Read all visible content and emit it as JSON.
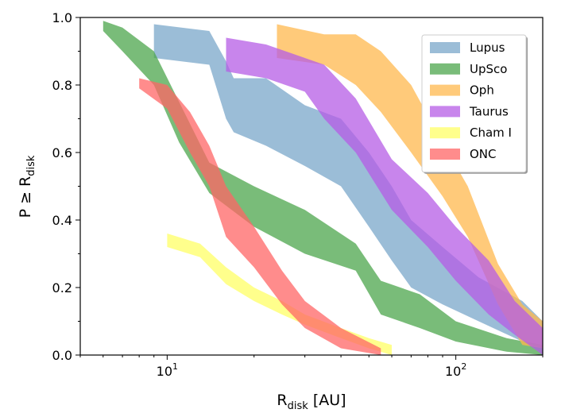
{
  "chart_data": {
    "type": "area",
    "xscale": "log",
    "xlim": [
      5,
      200
    ],
    "ylim": [
      0.0,
      1.0
    ],
    "xlabel": {
      "main": "R",
      "sub": "disk",
      "rest": " [AU]"
    },
    "ylabel": {
      "main": "P ≥ R",
      "sub": "disk"
    },
    "xticks": [
      {
        "value": 10,
        "base": "10",
        "exp": "1"
      },
      {
        "value": 100,
        "base": "10",
        "exp": "2"
      }
    ],
    "yticks": [
      {
        "value": 0.0,
        "label": "0.0"
      },
      {
        "value": 0.2,
        "label": "0.2"
      },
      {
        "value": 0.4,
        "label": "0.4"
      },
      {
        "value": 0.6,
        "label": "0.6"
      },
      {
        "value": 0.8,
        "label": "0.8"
      },
      {
        "value": 1.0,
        "label": "1.0"
      }
    ],
    "legend_position": "upper-right",
    "series": [
      {
        "name": "Lupus",
        "color": "#7aa7ca",
        "upper": [
          [
            9,
            0.98
          ],
          [
            14,
            0.96
          ],
          [
            16,
            0.87
          ],
          [
            17,
            0.82
          ],
          [
            22,
            0.82
          ],
          [
            30,
            0.74
          ],
          [
            40,
            0.7
          ],
          [
            50,
            0.6
          ],
          [
            60,
            0.5
          ],
          [
            70,
            0.4
          ],
          [
            90,
            0.32
          ],
          [
            120,
            0.23
          ],
          [
            170,
            0.16
          ],
          [
            200,
            0.1
          ]
        ],
        "lower": [
          [
            9,
            0.88
          ],
          [
            14,
            0.86
          ],
          [
            16,
            0.7
          ],
          [
            17,
            0.66
          ],
          [
            22,
            0.62
          ],
          [
            30,
            0.56
          ],
          [
            40,
            0.5
          ],
          [
            50,
            0.38
          ],
          [
            60,
            0.28
          ],
          [
            70,
            0.2
          ],
          [
            90,
            0.15
          ],
          [
            120,
            0.1
          ],
          [
            170,
            0.04
          ],
          [
            200,
            0.02
          ]
        ]
      },
      {
        "name": "UpSco",
        "color": "#4ca64c",
        "upper": [
          [
            6,
            0.99
          ],
          [
            7,
            0.97
          ],
          [
            9,
            0.9
          ],
          [
            11,
            0.75
          ],
          [
            14,
            0.57
          ],
          [
            20,
            0.5
          ],
          [
            30,
            0.43
          ],
          [
            45,
            0.33
          ],
          [
            55,
            0.22
          ],
          [
            75,
            0.18
          ],
          [
            100,
            0.1
          ],
          [
            150,
            0.05
          ],
          [
            200,
            0.03
          ]
        ],
        "lower": [
          [
            6,
            0.96
          ],
          [
            7,
            0.9
          ],
          [
            9,
            0.8
          ],
          [
            11,
            0.63
          ],
          [
            14,
            0.48
          ],
          [
            20,
            0.38
          ],
          [
            30,
            0.3
          ],
          [
            45,
            0.25
          ],
          [
            55,
            0.12
          ],
          [
            75,
            0.08
          ],
          [
            100,
            0.04
          ],
          [
            150,
            0.01
          ],
          [
            200,
            0.0
          ]
        ]
      },
      {
        "name": "Oph",
        "color": "#ffb84d",
        "upper": [
          [
            24,
            0.98
          ],
          [
            35,
            0.95
          ],
          [
            45,
            0.95
          ],
          [
            55,
            0.9
          ],
          [
            70,
            0.8
          ],
          [
            90,
            0.63
          ],
          [
            110,
            0.5
          ],
          [
            140,
            0.27
          ],
          [
            170,
            0.15
          ],
          [
            200,
            0.1
          ]
        ],
        "lower": [
          [
            24,
            0.88
          ],
          [
            35,
            0.86
          ],
          [
            45,
            0.8
          ],
          [
            55,
            0.72
          ],
          [
            70,
            0.6
          ],
          [
            90,
            0.47
          ],
          [
            110,
            0.35
          ],
          [
            140,
            0.15
          ],
          [
            170,
            0.03
          ],
          [
            200,
            0.02
          ]
        ]
      },
      {
        "name": "Taurus",
        "color": "#b65ce6",
        "upper": [
          [
            16,
            0.94
          ],
          [
            22,
            0.92
          ],
          [
            30,
            0.88
          ],
          [
            35,
            0.86
          ],
          [
            45,
            0.76
          ],
          [
            60,
            0.58
          ],
          [
            80,
            0.48
          ],
          [
            100,
            0.38
          ],
          [
            130,
            0.28
          ],
          [
            160,
            0.16
          ],
          [
            200,
            0.08
          ]
        ],
        "lower": [
          [
            16,
            0.84
          ],
          [
            22,
            0.82
          ],
          [
            30,
            0.78
          ],
          [
            35,
            0.7
          ],
          [
            45,
            0.6
          ],
          [
            60,
            0.43
          ],
          [
            80,
            0.32
          ],
          [
            100,
            0.22
          ],
          [
            130,
            0.12
          ],
          [
            160,
            0.06
          ],
          [
            200,
            0.0
          ]
        ]
      },
      {
        "name": "Cham I",
        "color": "#ffff66",
        "upper": [
          [
            10,
            0.36
          ],
          [
            13,
            0.33
          ],
          [
            16,
            0.26
          ],
          [
            20,
            0.2
          ],
          [
            25,
            0.16
          ],
          [
            30,
            0.12
          ],
          [
            40,
            0.08
          ],
          [
            50,
            0.05
          ],
          [
            60,
            0.03
          ]
        ],
        "lower": [
          [
            10,
            0.32
          ],
          [
            13,
            0.29
          ],
          [
            16,
            0.21
          ],
          [
            20,
            0.16
          ],
          [
            25,
            0.12
          ],
          [
            30,
            0.09
          ],
          [
            40,
            0.05
          ],
          [
            50,
            0.02
          ],
          [
            60,
            0.0
          ]
        ]
      },
      {
        "name": "ONC",
        "color": "#ff6666",
        "upper": [
          [
            8,
            0.82
          ],
          [
            10,
            0.8
          ],
          [
            12,
            0.72
          ],
          [
            14,
            0.62
          ],
          [
            16,
            0.5
          ],
          [
            20,
            0.38
          ],
          [
            25,
            0.25
          ],
          [
            30,
            0.16
          ],
          [
            40,
            0.08
          ],
          [
            55,
            0.02
          ]
        ],
        "lower": [
          [
            8,
            0.79
          ],
          [
            10,
            0.73
          ],
          [
            12,
            0.6
          ],
          [
            14,
            0.5
          ],
          [
            16,
            0.35
          ],
          [
            20,
            0.26
          ],
          [
            25,
            0.15
          ],
          [
            30,
            0.08
          ],
          [
            40,
            0.02
          ],
          [
            55,
            0.0
          ]
        ]
      }
    ]
  }
}
